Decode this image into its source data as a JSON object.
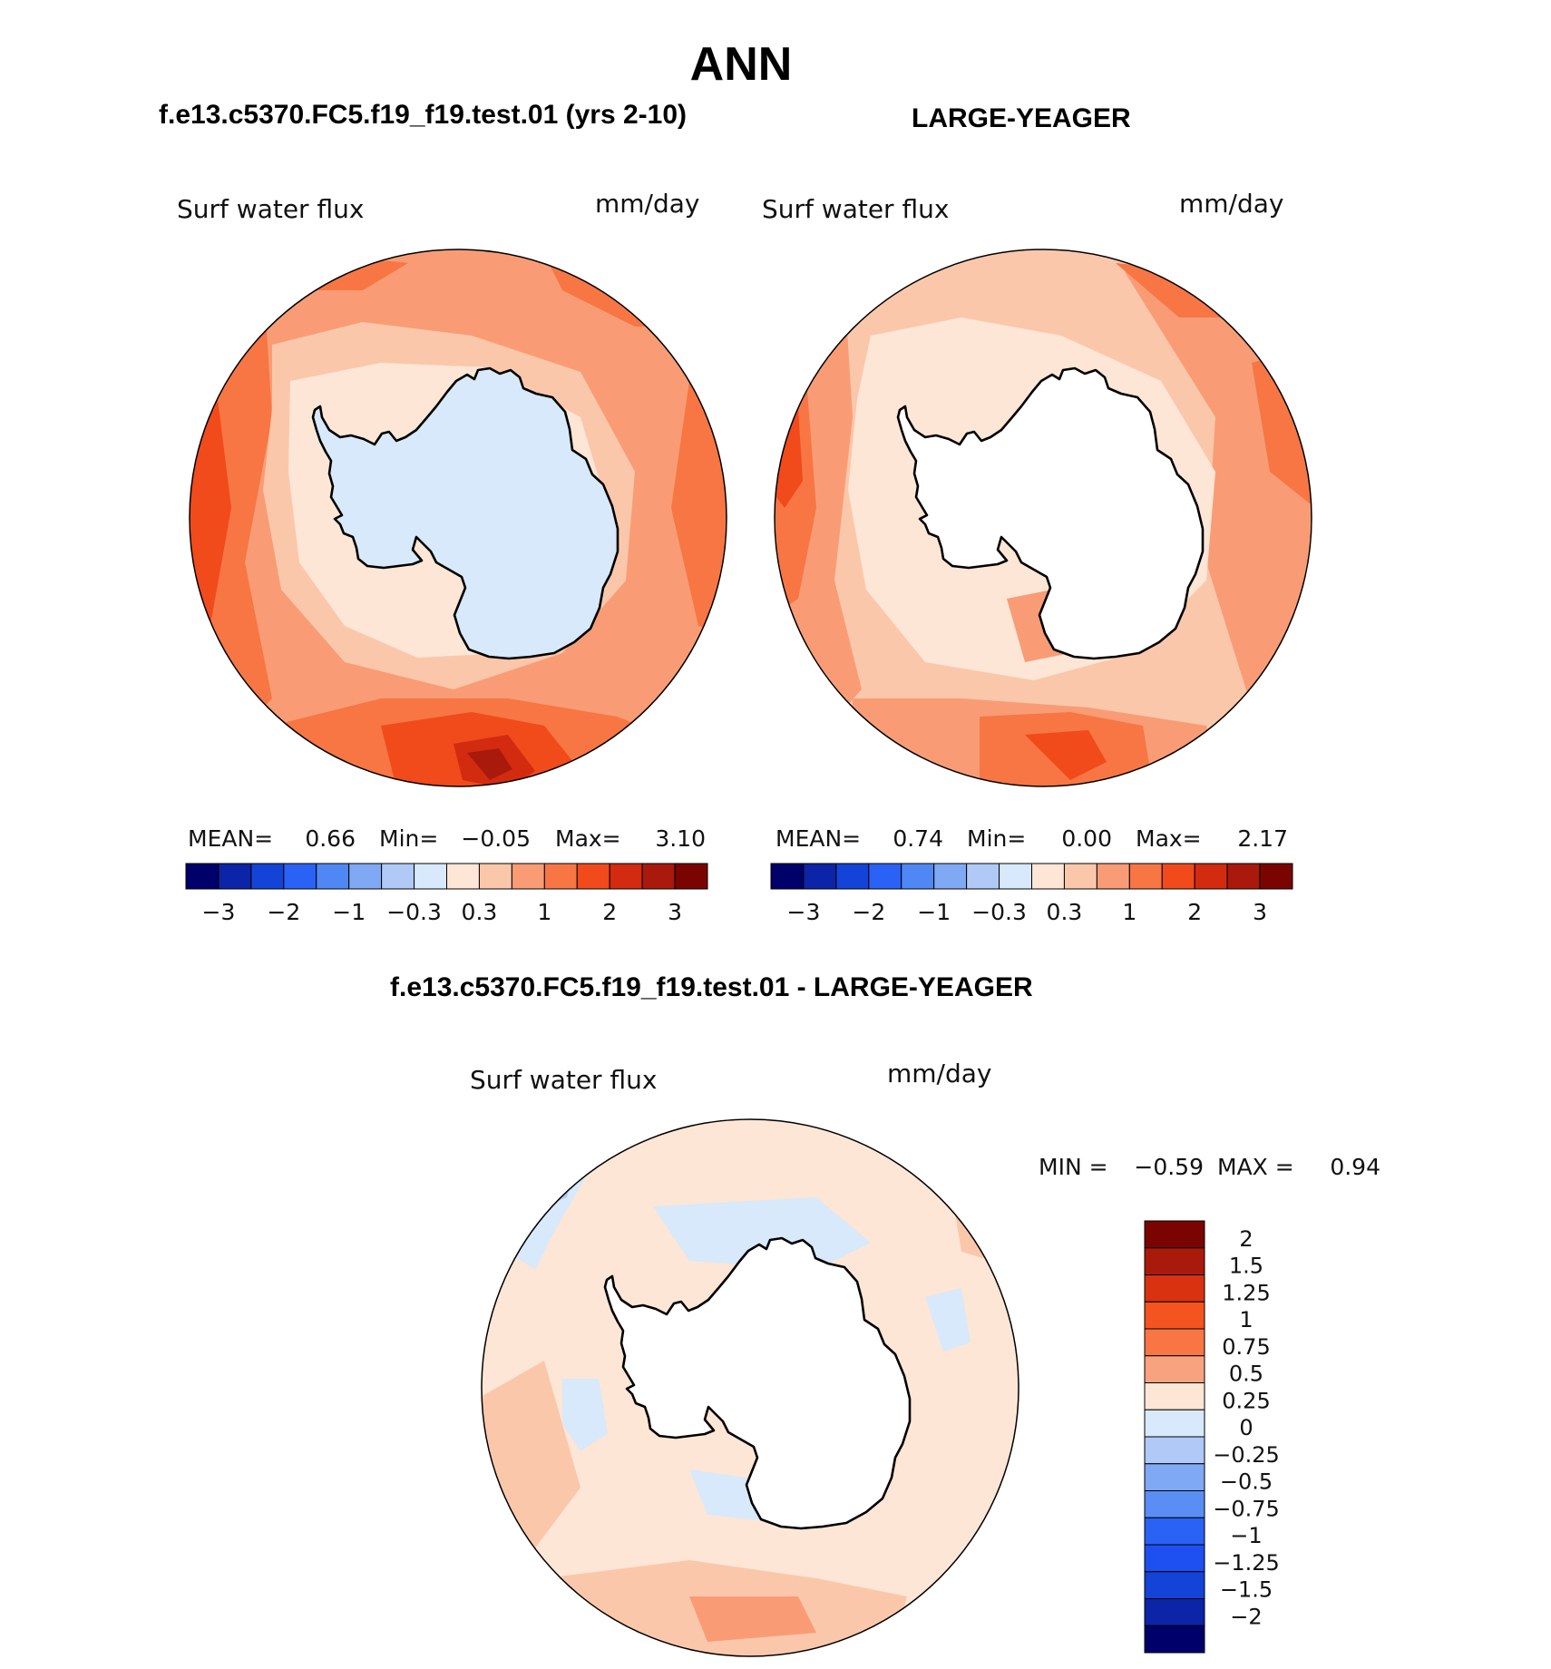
{
  "figure": {
    "title": "ANN",
    "test_case_label": "f.e13.c5370.FC5.f19_f19.test.01 (yrs 2-10)",
    "obs_label": "LARGE-YEAGER",
    "diff_label": "f.e13.c5370.FC5.f19_f19.test.01 - LARGE-YEAGER"
  },
  "colors": {
    "land_outline": "#000000",
    "ocean_default": "#fbab85",
    "land_fill": "#ffffff"
  },
  "panels": [
    {
      "id": "test",
      "variable": "Surf water flux",
      "units": "mm/day",
      "stats": {
        "mean_label": "MEAN=",
        "mean": "0.66",
        "min_label": "Min=",
        "min": "−0.05",
        "max_label": "Max=",
        "max": "3.10"
      },
      "colorbar": {
        "colors": [
          "#00006b",
          "#0c24a8",
          "#1443d8",
          "#2a62f5",
          "#4f87f5",
          "#7fa9f4",
          "#b0c9f6",
          "#d7e9fb",
          "#fde6d6",
          "#fbc7ab",
          "#f99c75",
          "#f77644",
          "#f14a1b",
          "#d22b10",
          "#a91a0c",
          "#7a0400"
        ],
        "tick_labels": [
          "−3",
          "−2",
          "−1",
          "−0.3",
          "0.3",
          "1",
          "2",
          "3"
        ]
      },
      "land_fill_color": "#d7e9fb"
    },
    {
      "id": "obs",
      "variable": "Surf water flux",
      "units": "mm/day",
      "stats": {
        "mean_label": "MEAN=",
        "mean": "0.74",
        "min_label": "Min=",
        "min": "0.00",
        "max_label": "Max=",
        "max": "2.17"
      },
      "colorbar": {
        "colors": [
          "#00006b",
          "#0c24a8",
          "#1443d8",
          "#2a62f5",
          "#4f87f5",
          "#7fa9f4",
          "#b0c9f6",
          "#d7e9fb",
          "#fde6d6",
          "#fbc7ab",
          "#f99c75",
          "#f77644",
          "#f14a1b",
          "#d22b10",
          "#a91a0c",
          "#7a0400"
        ],
        "tick_labels": [
          "−3",
          "−2",
          "−1",
          "−0.3",
          "0.3",
          "1",
          "2",
          "3"
        ]
      },
      "land_fill_color": "#ffffff"
    },
    {
      "id": "diff",
      "variable": "Surf water flux",
      "units": "mm/day",
      "stats": {
        "min_label": "MIN =",
        "min": "−0.59",
        "max_label": "MAX =",
        "max": "0.94"
      },
      "colorbar": {
        "colors": [
          "#7a0400",
          "#a91a0c",
          "#d83210",
          "#f4541f",
          "#f77644",
          "#f9a27f",
          "#fde6d6",
          "#d7e9fb",
          "#b0c9f6",
          "#7fa9f4",
          "#5a8ef4",
          "#2a62f5",
          "#1e4ff0",
          "#1443d8",
          "#0c24a8",
          "#00006b"
        ],
        "tick_labels": [
          "2",
          "1.5",
          "1.25",
          "1",
          "0.75",
          "0.5",
          "0.25",
          "0",
          "−0.25",
          "−0.5",
          "−0.75",
          "−1",
          "−1.25",
          "−1.5",
          "−2"
        ]
      },
      "land_fill_color": "#ffffff"
    }
  ]
}
